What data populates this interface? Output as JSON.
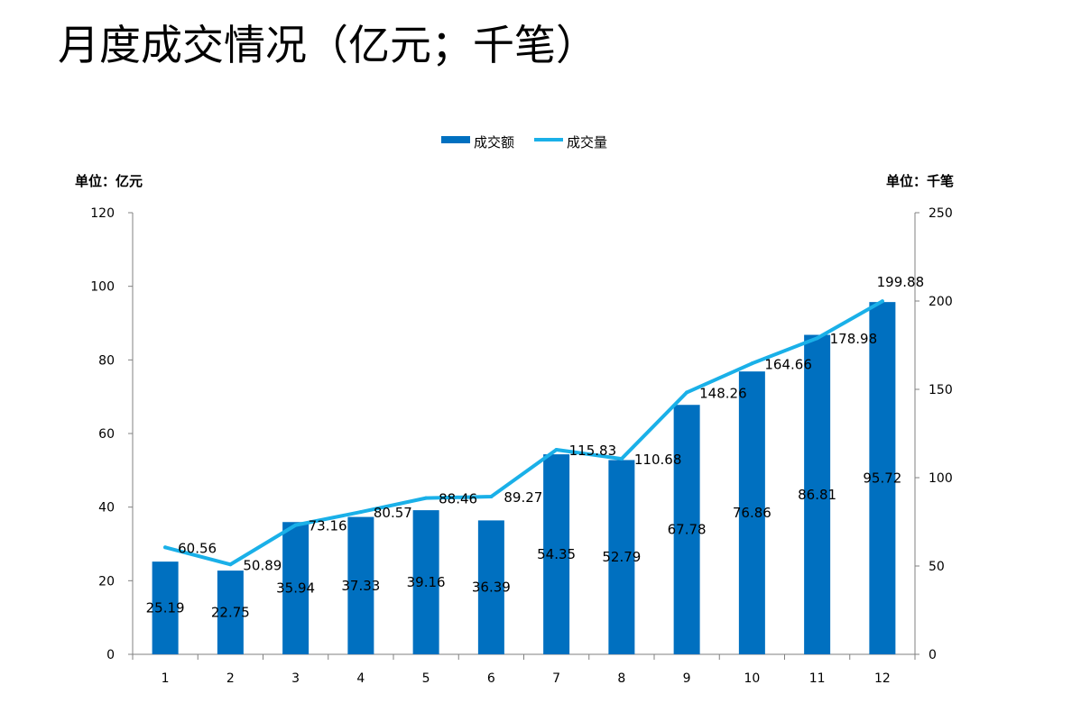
{
  "page": {
    "title": "月度成交情况（亿元；千笔）"
  },
  "chart_data": {
    "type": "bar+line",
    "categories": [
      "1",
      "2",
      "3",
      "4",
      "5",
      "6",
      "7",
      "8",
      "9",
      "10",
      "11",
      "12"
    ],
    "series": [
      {
        "name": "成交额",
        "type": "bar",
        "axis": "left",
        "color": "#0070C0",
        "values": [
          25.19,
          22.75,
          35.94,
          37.33,
          39.16,
          36.39,
          54.35,
          52.79,
          67.78,
          76.86,
          86.81,
          95.72
        ]
      },
      {
        "name": "成交量",
        "type": "line",
        "axis": "right",
        "color": "#1AB0E8",
        "values": [
          60.56,
          50.89,
          73.16,
          80.57,
          88.46,
          89.27,
          115.83,
          110.68,
          148.26,
          164.66,
          178.98,
          199.88
        ]
      }
    ],
    "y_left": {
      "label": "单位：亿元",
      "ylim": [
        0,
        120
      ],
      "ticks": [
        0,
        20,
        40,
        60,
        80,
        100,
        120
      ]
    },
    "y_right": {
      "label": "单位：千笔",
      "ylim": [
        0,
        250
      ],
      "ticks": [
        0,
        50,
        100,
        150,
        200,
        250
      ]
    },
    "grid": false,
    "legend": "top-center"
  }
}
